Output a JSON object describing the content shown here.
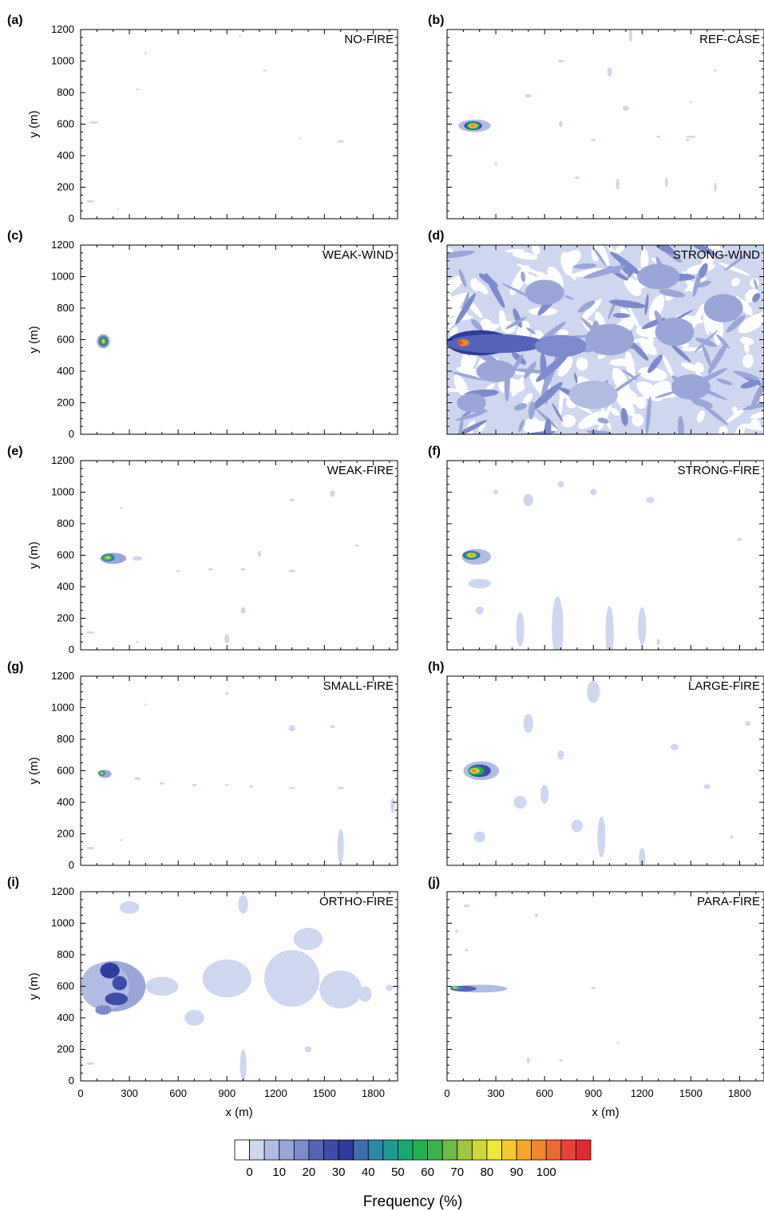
{
  "chart_data": {
    "type": "heatmap",
    "xlabel": "x (m)",
    "ylabel": "y (m)",
    "xlim": [
      0,
      1950
    ],
    "ylim": [
      0,
      1200
    ],
    "x_ticks": [
      0,
      300,
      600,
      900,
      1200,
      1500,
      1800
    ],
    "y_ticks": [
      0,
      200,
      400,
      600,
      800,
      1000,
      1200
    ],
    "x_minor_step": 100,
    "y_minor_step": 50,
    "panels": [
      {
        "letter": "(a)",
        "name": "NO-FIRE",
        "blobs": [
          [
            80,
            610,
            30,
            8,
            1
          ],
          [
            60,
            110,
            25,
            8,
            1
          ],
          [
            400,
            1050,
            8,
            6,
            1
          ],
          [
            350,
            820,
            10,
            6,
            1
          ],
          [
            980,
            1160,
            8,
            6,
            1
          ],
          [
            1130,
            940,
            12,
            6,
            1
          ],
          [
            1600,
            490,
            20,
            8,
            1
          ],
          [
            1350,
            510,
            5,
            4,
            1
          ],
          [
            230,
            60,
            6,
            4,
            1
          ]
        ]
      },
      {
        "letter": "(b)",
        "name": "REF-CASE",
        "blobs": [
          [
            170,
            590,
            100,
            40,
            2
          ],
          [
            160,
            590,
            55,
            28,
            6
          ],
          [
            160,
            590,
            40,
            22,
            12
          ],
          [
            160,
            590,
            28,
            16,
            16
          ],
          [
            160,
            590,
            16,
            10,
            20
          ],
          [
            700,
            600,
            12,
            20,
            1
          ],
          [
            900,
            500,
            15,
            8,
            1
          ],
          [
            1000,
            930,
            15,
            30,
            1
          ],
          [
            700,
            1000,
            20,
            8,
            1
          ],
          [
            1100,
            700,
            20,
            15,
            1
          ],
          [
            1480,
            500,
            10,
            8,
            1
          ],
          [
            1300,
            520,
            12,
            8,
            1
          ],
          [
            1650,
            200,
            8,
            30,
            1
          ],
          [
            1350,
            230,
            10,
            30,
            1
          ],
          [
            1050,
            220,
            10,
            35,
            1
          ],
          [
            800,
            260,
            15,
            8,
            1
          ],
          [
            300,
            350,
            8,
            10,
            1
          ],
          [
            1500,
            520,
            30,
            8,
            1
          ],
          [
            500,
            780,
            20,
            12,
            1
          ],
          [
            1130,
            1160,
            10,
            40,
            1
          ],
          [
            1500,
            740,
            8,
            6,
            1
          ],
          [
            1650,
            940,
            10,
            6,
            1
          ]
        ]
      },
      {
        "letter": "(c)",
        "name": "WEAK-WIND",
        "blobs": [
          [
            140,
            590,
            40,
            45,
            3
          ],
          [
            140,
            590,
            28,
            32,
            8
          ],
          [
            140,
            590,
            18,
            22,
            13
          ],
          [
            140,
            590,
            9,
            12,
            16
          ]
        ]
      },
      {
        "letter": "(d)",
        "name": "STRONG-WIND",
        "background": 1,
        "blobs": [
          [
            120,
            580,
            90,
            50,
            18
          ],
          [
            200,
            580,
            200,
            80,
            7
          ],
          [
            300,
            575,
            300,
            60,
            5
          ],
          [
            700,
            560,
            160,
            70,
            4
          ],
          [
            1000,
            600,
            150,
            100,
            3
          ],
          [
            1400,
            650,
            120,
            90,
            3
          ],
          [
            300,
            400,
            120,
            70,
            3
          ],
          [
            1500,
            300,
            120,
            80,
            3
          ],
          [
            600,
            900,
            120,
            80,
            3
          ],
          [
            1300,
            1000,
            130,
            80,
            3
          ],
          [
            900,
            250,
            150,
            90,
            2
          ],
          [
            1700,
            800,
            120,
            90,
            3
          ],
          [
            150,
            200,
            90,
            60,
            3
          ],
          [
            100,
            580,
            35,
            22,
            20
          ],
          [
            80,
            580,
            18,
            12,
            22
          ]
        ]
      },
      {
        "letter": "(e)",
        "name": "WEAK-FIRE",
        "blobs": [
          [
            200,
            580,
            80,
            35,
            3
          ],
          [
            170,
            585,
            40,
            25,
            9
          ],
          [
            165,
            585,
            25,
            15,
            14
          ],
          [
            170,
            585,
            12,
            8,
            16
          ],
          [
            350,
            580,
            30,
            15,
            1
          ],
          [
            1000,
            510,
            15,
            8,
            1
          ],
          [
            800,
            510,
            15,
            8,
            1
          ],
          [
            1300,
            500,
            20,
            8,
            1
          ],
          [
            1100,
            610,
            10,
            20,
            1
          ],
          [
            1550,
            990,
            15,
            20,
            1
          ],
          [
            1700,
            660,
            12,
            8,
            1
          ],
          [
            900,
            70,
            15,
            30,
            1
          ],
          [
            1000,
            250,
            15,
            20,
            1
          ],
          [
            60,
            110,
            25,
            8,
            1
          ],
          [
            350,
            50,
            8,
            6,
            1
          ],
          [
            1300,
            950,
            15,
            8,
            1
          ],
          [
            250,
            900,
            8,
            6,
            1
          ],
          [
            600,
            500,
            12,
            6,
            1
          ]
        ]
      },
      {
        "letter": "(f)",
        "name": "STRONG-FIRE",
        "blobs": [
          [
            180,
            590,
            90,
            50,
            2
          ],
          [
            150,
            600,
            55,
            28,
            8
          ],
          [
            150,
            600,
            38,
            20,
            13
          ],
          [
            150,
            600,
            25,
            13,
            17
          ],
          [
            150,
            600,
            14,
            8,
            20
          ],
          [
            450,
            130,
            25,
            110,
            1
          ],
          [
            680,
            140,
            35,
            200,
            1
          ],
          [
            1000,
            110,
            25,
            170,
            1
          ],
          [
            1200,
            150,
            25,
            120,
            1
          ],
          [
            200,
            420,
            70,
            30,
            1
          ],
          [
            500,
            950,
            30,
            40,
            1
          ],
          [
            900,
            1000,
            20,
            20,
            1
          ],
          [
            1250,
            950,
            25,
            20,
            1
          ],
          [
            1800,
            700,
            15,
            10,
            1
          ],
          [
            300,
            1000,
            15,
            15,
            1
          ],
          [
            700,
            1050,
            20,
            20,
            1
          ],
          [
            200,
            250,
            25,
            25,
            1
          ],
          [
            1300,
            50,
            10,
            20,
            1
          ]
        ]
      },
      {
        "letter": "(g)",
        "name": "SMALL-FIRE",
        "blobs": [
          [
            150,
            580,
            40,
            25,
            3
          ],
          [
            130,
            585,
            22,
            17,
            9
          ],
          [
            130,
            585,
            14,
            11,
            14
          ],
          [
            130,
            585,
            7,
            6,
            16
          ],
          [
            350,
            550,
            20,
            10,
            1
          ],
          [
            500,
            520,
            15,
            8,
            1
          ],
          [
            700,
            510,
            15,
            8,
            1
          ],
          [
            900,
            510,
            12,
            6,
            1
          ],
          [
            1050,
            500,
            12,
            8,
            1
          ],
          [
            1300,
            490,
            20,
            6,
            1
          ],
          [
            1600,
            490,
            20,
            8,
            1
          ],
          [
            1920,
            380,
            12,
            50,
            1
          ],
          [
            1600,
            120,
            20,
            110,
            1
          ],
          [
            900,
            1090,
            10,
            10,
            1
          ],
          [
            1300,
            870,
            20,
            20,
            1
          ],
          [
            1550,
            880,
            15,
            10,
            1
          ],
          [
            60,
            110,
            25,
            8,
            1
          ],
          [
            400,
            1020,
            8,
            6,
            1
          ],
          [
            250,
            160,
            8,
            6,
            1
          ]
        ]
      },
      {
        "letter": "(h)",
        "name": "LARGE-FIRE",
        "blobs": [
          [
            210,
            600,
            110,
            60,
            2
          ],
          [
            200,
            600,
            70,
            40,
            6
          ],
          [
            180,
            600,
            48,
            28,
            12
          ],
          [
            170,
            600,
            30,
            18,
            16
          ],
          [
            165,
            600,
            16,
            10,
            20
          ],
          [
            450,
            400,
            40,
            40,
            1
          ],
          [
            950,
            180,
            25,
            130,
            1
          ],
          [
            1200,
            50,
            20,
            60,
            1
          ],
          [
            800,
            250,
            35,
            40,
            1
          ],
          [
            500,
            900,
            30,
            60,
            1
          ],
          [
            900,
            1100,
            40,
            70,
            1
          ],
          [
            1400,
            750,
            25,
            20,
            1
          ],
          [
            1600,
            500,
            20,
            15,
            1
          ],
          [
            1750,
            180,
            10,
            10,
            1
          ],
          [
            1850,
            900,
            15,
            15,
            1
          ],
          [
            200,
            180,
            35,
            35,
            1
          ],
          [
            600,
            450,
            25,
            60,
            1
          ],
          [
            700,
            700,
            20,
            30,
            1
          ]
        ]
      },
      {
        "letter": "(i)",
        "name": "ORTHO-FIRE",
        "blobs": [
          [
            200,
            600,
            200,
            160,
            3
          ],
          [
            150,
            600,
            150,
            150,
            2
          ],
          [
            180,
            700,
            60,
            50,
            7
          ],
          [
            240,
            620,
            45,
            45,
            6
          ],
          [
            220,
            520,
            70,
            40,
            6
          ],
          [
            140,
            450,
            50,
            30,
            4
          ],
          [
            500,
            600,
            100,
            60,
            1
          ],
          [
            900,
            650,
            150,
            120,
            1
          ],
          [
            1300,
            650,
            170,
            180,
            1
          ],
          [
            1600,
            580,
            130,
            120,
            1
          ],
          [
            1000,
            100,
            20,
            100,
            1
          ],
          [
            1400,
            900,
            90,
            70,
            1
          ],
          [
            1750,
            550,
            40,
            50,
            1
          ],
          [
            700,
            400,
            60,
            50,
            1
          ],
          [
            1000,
            1120,
            30,
            60,
            1
          ],
          [
            300,
            1100,
            60,
            40,
            1
          ],
          [
            1900,
            590,
            20,
            20,
            1
          ],
          [
            1400,
            200,
            20,
            20,
            1
          ],
          [
            60,
            110,
            25,
            8,
            1
          ]
        ]
      },
      {
        "letter": "(j)",
        "name": "PARA-FIRE",
        "blobs": [
          [
            200,
            585,
            170,
            25,
            2
          ],
          [
            100,
            585,
            80,
            18,
            5
          ],
          [
            60,
            590,
            40,
            12,
            9
          ],
          [
            55,
            590,
            25,
            8,
            13
          ],
          [
            50,
            590,
            12,
            5,
            16
          ],
          [
            500,
            130,
            10,
            20,
            1
          ],
          [
            1050,
            240,
            8,
            6,
            1
          ],
          [
            900,
            590,
            15,
            8,
            1
          ],
          [
            120,
            1110,
            20,
            10,
            1
          ],
          [
            1400,
            1180,
            10,
            8,
            1
          ],
          [
            60,
            950,
            10,
            10,
            1
          ],
          [
            120,
            830,
            10,
            8,
            1
          ],
          [
            700,
            130,
            10,
            8,
            1
          ],
          [
            550,
            1050,
            10,
            10,
            1
          ]
        ]
      }
    ],
    "colorbar": {
      "colors": [
        "#ffffff",
        "#cfd6ef",
        "#b1bce2",
        "#9aa6d7",
        "#7d8acb",
        "#5563b8",
        "#3e4ca8",
        "#2e3c9c",
        "#3f6fb1",
        "#2d89a8",
        "#1d9b95",
        "#1aa872",
        "#1fb24f",
        "#3bb44a",
        "#6dbc45",
        "#9dc83f",
        "#cdd63a",
        "#ece93a",
        "#f6c92d",
        "#f6a62b",
        "#f08730",
        "#ea6a34",
        "#e54436",
        "#e12a30"
      ],
      "labels": [
        "0",
        "10",
        "20",
        "30",
        "40",
        "50",
        "60",
        "70",
        "80",
        "90",
        "100"
      ],
      "title": "Frequency (%)"
    }
  }
}
